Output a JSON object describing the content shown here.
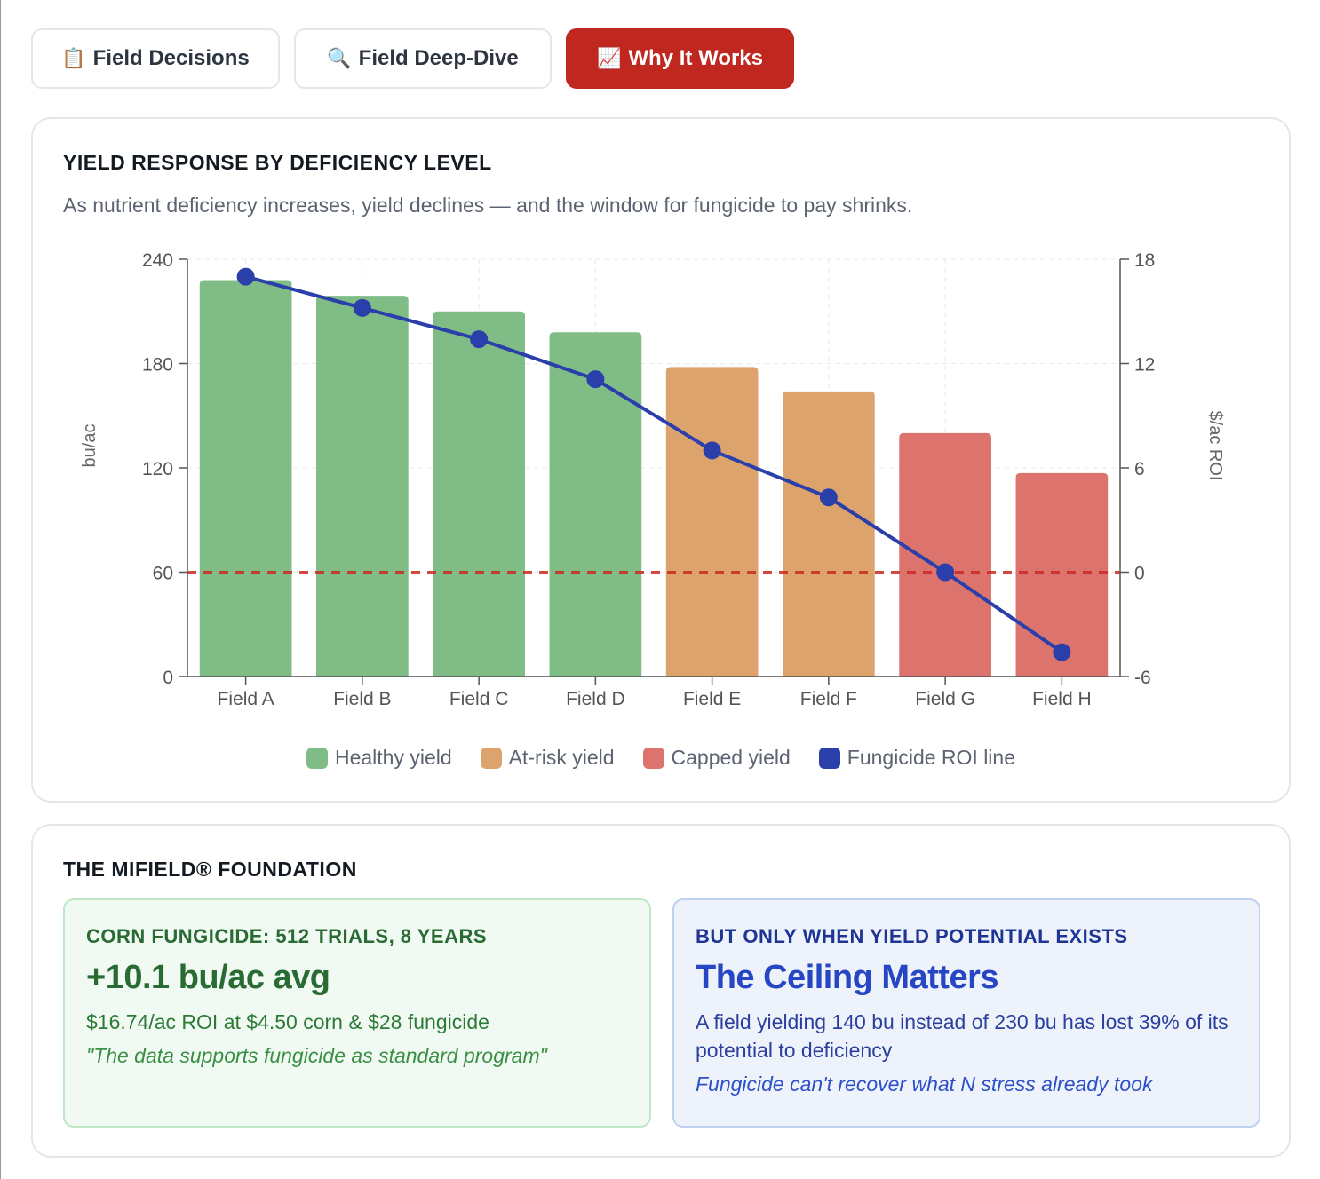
{
  "tabs": [
    {
      "icon": "📋",
      "label": "Field Decisions",
      "active": false
    },
    {
      "icon": "🔍",
      "label": "Field Deep-Dive",
      "active": false
    },
    {
      "icon": "📈",
      "label": "Why It Works",
      "active": true
    }
  ],
  "chart_section": {
    "title": "YIELD RESPONSE BY DEFICIENCY LEVEL",
    "subtitle": "As nutrient deficiency increases, yield declines — and the window for fungicide to pay shrinks."
  },
  "chart_data": {
    "type": "bar",
    "categories": [
      "Field A",
      "Field B",
      "Field C",
      "Field D",
      "Field E",
      "Field F",
      "Field G",
      "Field H"
    ],
    "series": [
      {
        "name": "Healthy yield",
        "axis": "left",
        "values": [
          228,
          219,
          210,
          198,
          null,
          null,
          null,
          null
        ],
        "color": "#80bd86"
      },
      {
        "name": "At-risk yield",
        "axis": "left",
        "values": [
          null,
          null,
          null,
          null,
          178,
          164,
          null,
          null
        ],
        "color": "#dca46c"
      },
      {
        "name": "Capped yield",
        "axis": "left",
        "values": [
          null,
          null,
          null,
          null,
          null,
          null,
          140,
          117
        ],
        "color": "#dd736d"
      },
      {
        "name": "Fungicide ROI line",
        "type": "line",
        "axis": "right",
        "values": [
          17,
          15.2,
          13.4,
          11.1,
          7,
          4.3,
          0,
          -4.6
        ],
        "color": "#2b3faa"
      }
    ],
    "ylabel": "bu/ac",
    "y2label": "$/ac ROI",
    "ylim": [
      0,
      240
    ],
    "y2lim": [
      -6,
      18
    ],
    "yticks": [
      0,
      60,
      120,
      180,
      240
    ],
    "y2ticks": [
      -6,
      0,
      6,
      12,
      18
    ],
    "reference_line": {
      "axis": "right",
      "value": 0,
      "style": "dashed",
      "color": "#cc2a22"
    },
    "grid": true,
    "legend_position": "bottom"
  },
  "foundation": {
    "title": "THE MIFIELD® FOUNDATION",
    "left": {
      "heading": "CORN FUNGICIDE: 512 TRIALS, 8 YEARS",
      "big": "+10.1 bu/ac avg",
      "body": "$16.74/ac ROI at $4.50 corn & $28 fungicide",
      "quote": "\"The data supports fungicide as standard program\""
    },
    "right": {
      "heading": "BUT ONLY WHEN YIELD POTENTIAL EXISTS",
      "big": "The Ceiling Matters",
      "body": "A field yielding 140 bu instead of 230 bu has lost 39% of its potential to deficiency",
      "quote": "Fungicide can't recover what N stress already took"
    }
  }
}
